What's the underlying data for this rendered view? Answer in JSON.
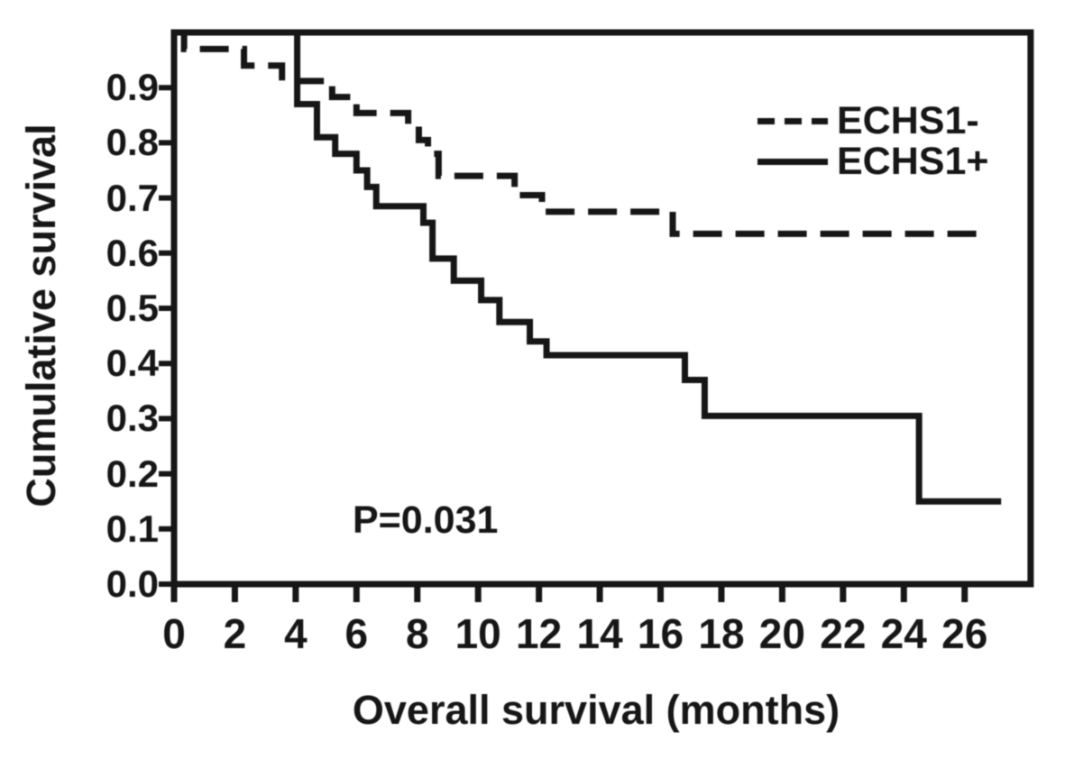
{
  "chart_data": {
    "type": "line",
    "subtype": "kaplan_meier_step_curves",
    "title": "",
    "xlabel": "Overall survival (months)",
    "ylabel": "Cumulative survival",
    "xlim": [
      0,
      28.2
    ],
    "ylim": [
      0.0,
      1.0
    ],
    "grid": false,
    "legend_position": "upper right",
    "annotation": "P=0.031",
    "x_ticks": [
      0,
      2,
      4,
      6,
      8,
      10,
      12,
      14,
      16,
      18,
      20,
      22,
      24,
      26
    ],
    "y_ticks": [
      "0.0",
      "0.1",
      "0.2",
      "0.3",
      "0.4",
      "0.5",
      "0.6",
      "0.7",
      "0.8",
      "0.9"
    ],
    "series": [
      {
        "name": "ECHS1-",
        "line_style": "dashed",
        "end_month": 26.8,
        "steps": [
          [
            0,
            1.0
          ],
          [
            0.33,
            0.97
          ],
          [
            2.3,
            0.94
          ],
          [
            3.55,
            0.912
          ],
          [
            5.2,
            0.883
          ],
          [
            6.0,
            0.854
          ],
          [
            7.7,
            0.83
          ],
          [
            8.05,
            0.805
          ],
          [
            8.35,
            0.78
          ],
          [
            8.7,
            0.74
          ],
          [
            11.2,
            0.705
          ],
          [
            12.1,
            0.675
          ],
          [
            16.4,
            0.635
          ]
        ]
      },
      {
        "name": "ECHS1+",
        "line_style": "solid",
        "end_month": 27.2,
        "steps": [
          [
            0,
            1.0
          ],
          [
            4.05,
            0.87
          ],
          [
            4.7,
            0.81
          ],
          [
            5.3,
            0.78
          ],
          [
            6.0,
            0.75
          ],
          [
            6.35,
            0.72
          ],
          [
            6.65,
            0.685
          ],
          [
            8.2,
            0.655
          ],
          [
            8.5,
            0.59
          ],
          [
            9.2,
            0.55
          ],
          [
            10.1,
            0.515
          ],
          [
            10.7,
            0.475
          ],
          [
            11.7,
            0.44
          ],
          [
            12.25,
            0.415
          ],
          [
            16.8,
            0.37
          ],
          [
            17.45,
            0.305
          ],
          [
            24.5,
            0.15
          ]
        ]
      }
    ]
  },
  "colors": {
    "ink": "#161616",
    "background": "#ffffff"
  }
}
